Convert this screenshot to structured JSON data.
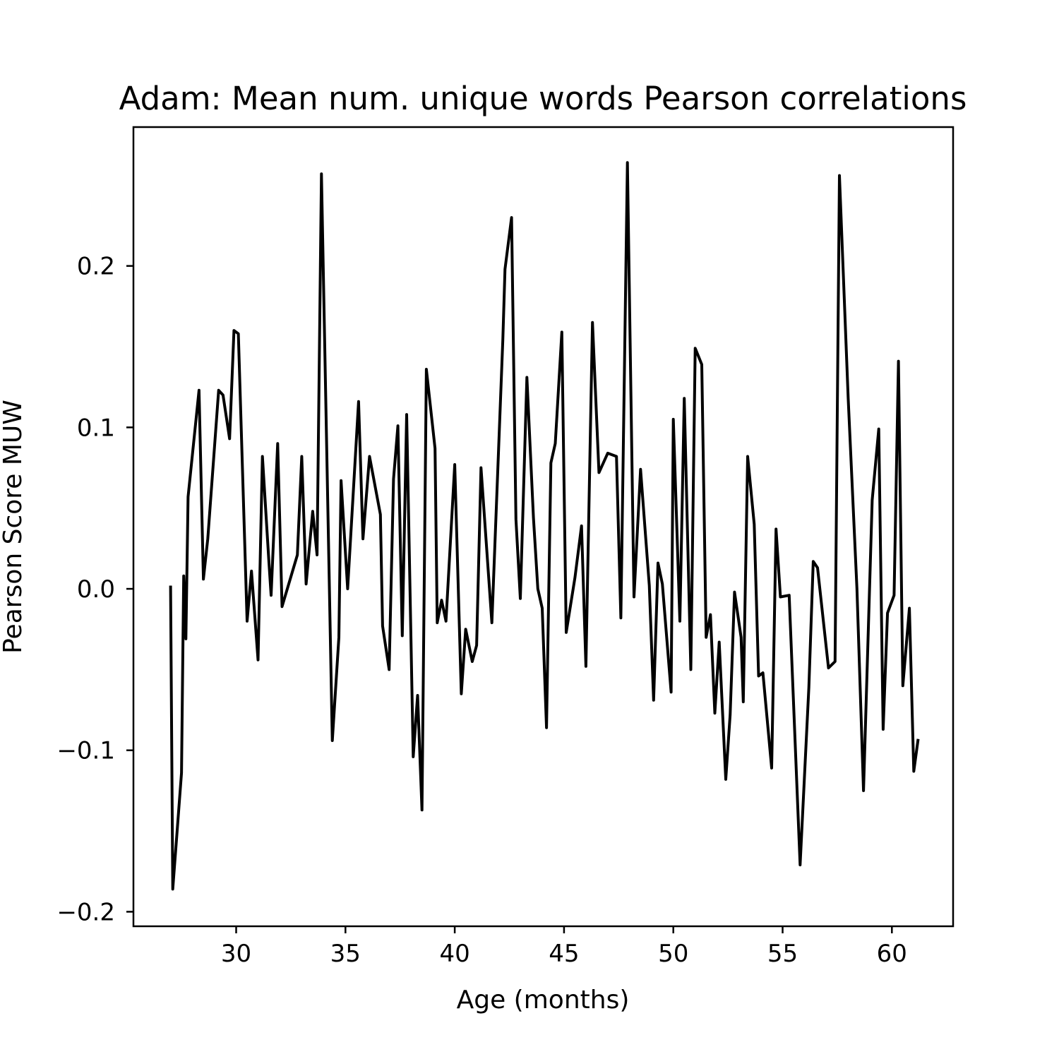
{
  "chart_data": {
    "type": "line",
    "title": "Adam: Mean num. unique words Pearson correlations",
    "xlabel": "Age (months)",
    "ylabel": "Pearson Score MUW",
    "xlim": [
      25.3,
      62.8
    ],
    "ylim": [
      -0.209,
      0.286
    ],
    "xticks": [
      30,
      35,
      40,
      45,
      50,
      55,
      60
    ],
    "xtick_labels": [
      "30",
      "35",
      "40",
      "45",
      "50",
      "55",
      "60"
    ],
    "yticks": [
      -0.2,
      -0.1,
      0.0,
      0.1,
      0.2
    ],
    "ytick_labels": [
      "−0.2",
      "−0.1",
      "0.0",
      "0.1",
      "0.2"
    ],
    "grid": false,
    "series": [
      {
        "color": "#000000",
        "points": [
          [
            27.0,
            0.002
          ],
          [
            27.1,
            -0.186
          ],
          [
            27.5,
            -0.114
          ],
          [
            27.6,
            0.008
          ],
          [
            27.7,
            -0.031
          ],
          [
            27.8,
            0.057
          ],
          [
            28.3,
            0.123
          ],
          [
            28.5,
            0.006
          ],
          [
            28.7,
            0.031
          ],
          [
            29.2,
            0.123
          ],
          [
            29.4,
            0.12
          ],
          [
            29.7,
            0.093
          ],
          [
            29.9,
            0.16
          ],
          [
            30.1,
            0.158
          ],
          [
            30.5,
            -0.02
          ],
          [
            30.7,
            0.011
          ],
          [
            31.0,
            -0.044
          ],
          [
            31.2,
            0.082
          ],
          [
            31.5,
            0.016
          ],
          [
            31.6,
            -0.004
          ],
          [
            31.9,
            0.09
          ],
          [
            32.1,
            -0.011
          ],
          [
            32.8,
            0.021
          ],
          [
            33.0,
            0.082
          ],
          [
            33.2,
            0.003
          ],
          [
            33.5,
            0.048
          ],
          [
            33.7,
            0.021
          ],
          [
            33.9,
            0.257
          ],
          [
            34.4,
            -0.094
          ],
          [
            34.7,
            -0.03
          ],
          [
            34.8,
            0.067
          ],
          [
            35.1,
            0.0
          ],
          [
            35.6,
            0.116
          ],
          [
            35.8,
            0.031
          ],
          [
            36.1,
            0.082
          ],
          [
            36.6,
            0.046
          ],
          [
            36.7,
            -0.023
          ],
          [
            37.0,
            -0.05
          ],
          [
            37.2,
            0.068
          ],
          [
            37.4,
            0.101
          ],
          [
            37.6,
            -0.029
          ],
          [
            37.8,
            0.108
          ],
          [
            38.1,
            -0.104
          ],
          [
            38.3,
            -0.066
          ],
          [
            38.5,
            -0.137
          ],
          [
            38.7,
            0.136
          ],
          [
            39.1,
            0.087
          ],
          [
            39.2,
            -0.021
          ],
          [
            39.4,
            -0.007
          ],
          [
            39.6,
            -0.02
          ],
          [
            40.0,
            0.077
          ],
          [
            40.3,
            -0.065
          ],
          [
            40.5,
            -0.025
          ],
          [
            40.8,
            -0.045
          ],
          [
            41.0,
            -0.035
          ],
          [
            41.2,
            0.075
          ],
          [
            41.7,
            -0.021
          ],
          [
            42.2,
            0.154
          ],
          [
            42.3,
            0.198
          ],
          [
            42.6,
            0.23
          ],
          [
            42.8,
            0.043
          ],
          [
            43.0,
            -0.006
          ],
          [
            43.3,
            0.131
          ],
          [
            43.6,
            0.044
          ],
          [
            43.8,
            0.0
          ],
          [
            44.0,
            -0.012
          ],
          [
            44.2,
            -0.086
          ],
          [
            44.4,
            0.078
          ],
          [
            44.6,
            0.09
          ],
          [
            44.9,
            0.159
          ],
          [
            45.1,
            -0.027
          ],
          [
            45.5,
            0.007
          ],
          [
            45.8,
            0.039
          ],
          [
            46.0,
            -0.048
          ],
          [
            46.3,
            0.165
          ],
          [
            46.6,
            0.072
          ],
          [
            47.0,
            0.084
          ],
          [
            47.4,
            0.082
          ],
          [
            47.6,
            -0.018
          ],
          [
            47.9,
            0.264
          ],
          [
            48.2,
            -0.005
          ],
          [
            48.5,
            0.074
          ],
          [
            48.9,
            0.002
          ],
          [
            49.1,
            -0.069
          ],
          [
            49.3,
            0.016
          ],
          [
            49.5,
            0.003
          ],
          [
            49.9,
            -0.064
          ],
          [
            50.0,
            0.105
          ],
          [
            50.3,
            -0.02
          ],
          [
            50.5,
            0.118
          ],
          [
            50.8,
            -0.05
          ],
          [
            51.0,
            0.149
          ],
          [
            51.3,
            0.139
          ],
          [
            51.5,
            -0.03
          ],
          [
            51.7,
            -0.016
          ],
          [
            51.9,
            -0.077
          ],
          [
            52.1,
            -0.033
          ],
          [
            52.4,
            -0.118
          ],
          [
            52.6,
            -0.078
          ],
          [
            52.8,
            -0.002
          ],
          [
            53.1,
            -0.03
          ],
          [
            53.2,
            -0.07
          ],
          [
            53.4,
            0.082
          ],
          [
            53.7,
            0.04
          ],
          [
            53.9,
            -0.054
          ],
          [
            54.1,
            -0.052
          ],
          [
            54.5,
            -0.111
          ],
          [
            54.7,
            0.037
          ],
          [
            54.9,
            -0.005
          ],
          [
            55.3,
            -0.004
          ],
          [
            55.8,
            -0.171
          ],
          [
            56.2,
            -0.061
          ],
          [
            56.4,
            0.017
          ],
          [
            56.6,
            0.013
          ],
          [
            57.1,
            -0.049
          ],
          [
            57.4,
            -0.045
          ],
          [
            57.6,
            0.256
          ],
          [
            58.0,
            0.118
          ],
          [
            58.4,
            0.0
          ],
          [
            58.7,
            -0.125
          ],
          [
            59.1,
            0.055
          ],
          [
            59.4,
            0.099
          ],
          [
            59.6,
            -0.087
          ],
          [
            59.8,
            -0.015
          ],
          [
            60.1,
            -0.004
          ],
          [
            60.3,
            0.141
          ],
          [
            60.5,
            -0.06
          ],
          [
            60.8,
            -0.012
          ],
          [
            61.0,
            -0.113
          ],
          [
            61.2,
            -0.093
          ]
        ]
      }
    ]
  }
}
